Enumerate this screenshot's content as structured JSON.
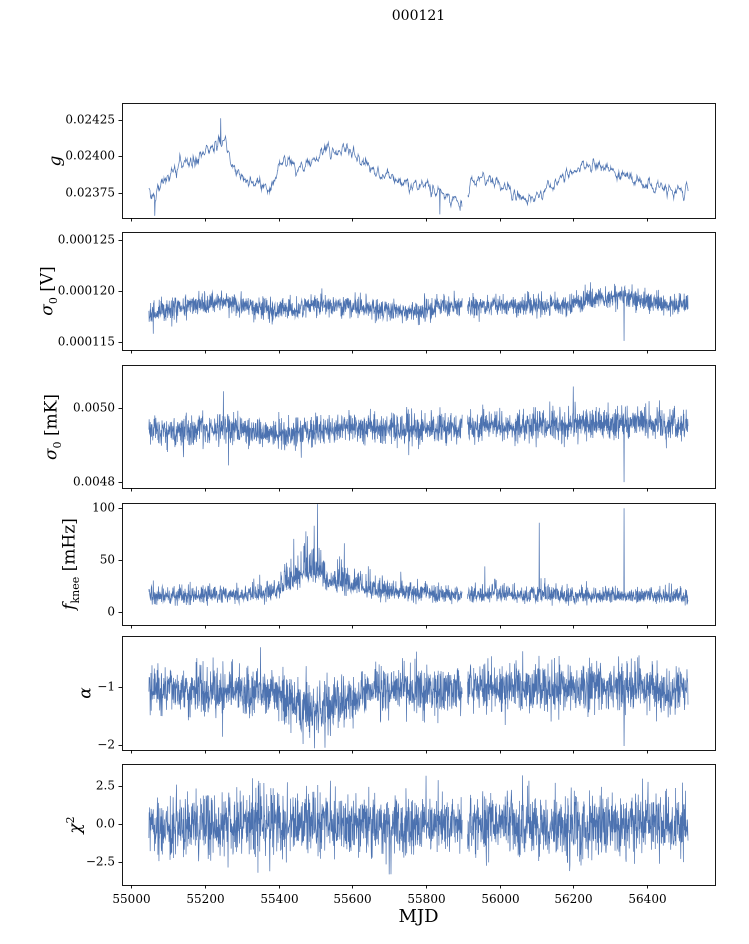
{
  "figure": {
    "title": "000121"
  },
  "chart_data": {
    "type": "line",
    "line_color": "#4c72b0",
    "x_axis": {
      "label": "MJD",
      "xlim": [
        54975,
        56585
      ],
      "ticks": {
        "values": [
          55000,
          55200,
          55400,
          55600,
          55800,
          56000,
          56200,
          56400
        ],
        "labels": [
          "55000",
          "55200",
          "55400",
          "55600",
          "55800",
          "56000",
          "56200",
          "56400"
        ]
      }
    },
    "panels": [
      {
        "name": "g",
        "ylabel": {
          "main": "g",
          "sub": "",
          "sup": "",
          "unit": ""
        },
        "ylim": [
          0.023575,
          0.024365
        ],
        "yticks": {
          "values": [
            0.02375,
            0.024,
            0.02425
          ],
          "labels": [
            "0.02375",
            "0.02400",
            "0.02425"
          ]
        },
        "x_range": [
          55048,
          56512
        ],
        "step": 1.0,
        "envelope": {
          "x": [
            55048,
            55070,
            55100,
            55140,
            55180,
            55210,
            55235,
            55252,
            55268,
            55290,
            55320,
            55350,
            55380,
            55402,
            55430,
            55460,
            55500,
            55540,
            55575,
            55610,
            55650,
            55690,
            55725,
            55760,
            55800,
            55830,
            55862,
            55892,
            55920,
            55950,
            55980,
            56010,
            56040,
            56070,
            56100,
            56130,
            56160,
            56200,
            56240,
            56270,
            56300,
            56330,
            56360,
            56400,
            56440,
            56470,
            56510
          ],
          "mean": [
            0.02368,
            0.02375,
            0.02386,
            0.02394,
            0.02399,
            0.02404,
            0.02409,
            0.02412,
            0.02396,
            0.02388,
            0.02383,
            0.02381,
            0.02379,
            0.02394,
            0.02397,
            0.02391,
            0.02399,
            0.02403,
            0.02405,
            0.024,
            0.02392,
            0.02386,
            0.02381,
            0.02379,
            0.02383,
            0.02376,
            0.02372,
            0.02368,
            0.0238,
            0.02386,
            0.02384,
            0.02377,
            0.02373,
            0.02371,
            0.02372,
            0.02378,
            0.02384,
            0.0239,
            0.02393,
            0.02395,
            0.02391,
            0.02387,
            0.02384,
            0.02381,
            0.02378,
            0.02375,
            0.02379
          ]
        },
        "noise_sd": 5e-05,
        "smooth": 2,
        "skew": 0,
        "clamp": [
          0.02358,
          0.024355
        ],
        "gaps": [
          [
            55899,
            55913
          ]
        ],
        "spikes": [
          [
            55064,
            0.02359
          ],
          [
            55243,
            0.02426
          ],
          [
            55838,
            0.0236
          ],
          [
            55893,
            0.023625
          ]
        ],
        "seed": 11
      },
      {
        "name": "sigma0_V",
        "ylabel": {
          "main": "σ",
          "sub": "0",
          "sup": "",
          "unit": " [V]"
        },
        "ylim": [
          0.0001142,
          0.0001258
        ],
        "yticks": {
          "values": [
            0.000115,
            0.00012,
            0.000125
          ],
          "labels": [
            "0.000115",
            "0.000120",
            "0.000125"
          ]
        },
        "x_range": [
          55048,
          56512
        ],
        "step": 0.7,
        "envelope": {
          "x": [
            55048,
            55080,
            55130,
            55180,
            55230,
            55258,
            55290,
            55330,
            55368,
            55386,
            55420,
            55470,
            55520,
            55570,
            55620,
            55680,
            55730,
            55780,
            55830,
            55880,
            55930,
            55980,
            56030,
            56080,
            56130,
            56180,
            56230,
            56280,
            56320,
            56350,
            56400,
            56450,
            56510
          ],
          "mean": [
            0.0001177,
            0.0001181,
            0.0001184,
            0.0001186,
            0.0001188,
            0.0001191,
            0.0001186,
            0.0001184,
            0.0001183,
            0.0001178,
            0.0001181,
            0.0001184,
            0.0001186,
            0.0001185,
            0.0001184,
            0.0001182,
            0.000118,
            0.0001181,
            0.0001183,
            0.0001184,
            0.0001185,
            0.0001186,
            0.0001185,
            0.0001185,
            0.0001186,
            0.0001187,
            0.000119,
            0.0001193,
            0.0001196,
            0.0001193,
            0.0001189,
            0.0001187,
            0.0001186
          ]
        },
        "noise_sd": 5.5e-07,
        "smooth": 0,
        "skew": 0,
        "clamp": [
          0.0001144,
          0.0001256
        ],
        "gaps": [
          [
            55899,
            55913
          ]
        ],
        "spikes": [
          [
            55060,
            0.0001158
          ],
          [
            56338,
            0.0001151
          ]
        ],
        "seed": 22
      },
      {
        "name": "sigma0_mK",
        "ylabel": {
          "main": "σ",
          "sub": "0",
          "sup": "",
          "unit": " [mK]"
        },
        "ylim": [
          0.004784,
          0.005116
        ],
        "yticks": {
          "values": [
            0.0048,
            0.005
          ],
          "labels": [
            "0.0048",
            "0.0050"
          ]
        },
        "x_range": [
          55048,
          56512
        ],
        "step": 0.7,
        "envelope": {
          "x": [
            55048,
            55100,
            55150,
            55200,
            55250,
            55300,
            55350,
            55400,
            55440,
            55480,
            55520,
            55560,
            55600,
            55650,
            55700,
            55750,
            55800,
            55850,
            55900,
            55950,
            56000,
            56050,
            56100,
            56150,
            56200,
            56250,
            56300,
            56350,
            56400,
            56450,
            56510
          ],
          "mean": [
            0.004934,
            0.004938,
            0.004941,
            0.004943,
            0.004945,
            0.00494,
            0.004936,
            0.004932,
            0.00493,
            0.004936,
            0.004942,
            0.004946,
            0.00495,
            0.004947,
            0.004944,
            0.004942,
            0.004941,
            0.004944,
            0.004947,
            0.00495,
            0.004953,
            0.00495,
            0.004951,
            0.004955,
            0.004958,
            0.004955,
            0.004956,
            0.00496,
            0.004963,
            0.00496,
            0.004958
          ]
        },
        "noise_sd": 2.15e-05,
        "smooth": 0,
        "skew": 0,
        "clamp": [
          0.004786,
          0.005112
        ],
        "gaps": [
          [
            55899,
            55913
          ]
        ],
        "spikes": [
          [
            55250,
            0.005045
          ],
          [
            55264,
            0.004845
          ],
          [
            56200,
            0.005058
          ],
          [
            56338,
            0.0048
          ]
        ],
        "seed": 33
      },
      {
        "name": "f_knee",
        "ylabel": {
          "main": "f",
          "sub": "knee",
          "sup": "",
          "unit": " [mHz]"
        },
        "ylim": [
          -12.5,
          105
        ],
        "yticks": {
          "values": [
            0,
            50,
            100
          ],
          "labels": [
            "0",
            "50",
            "100"
          ]
        },
        "x_range": [
          55048,
          56512
        ],
        "step": 0.7,
        "envelope": {
          "x": [
            55048,
            55150,
            55250,
            55330,
            55390,
            55430,
            55460,
            55490,
            55520,
            55550,
            55585,
            55615,
            55645,
            55700,
            55760,
            55820,
            55880,
            55940,
            56000,
            56060,
            56120,
            56200,
            56300,
            56400,
            56510
          ],
          "mean": [
            14,
            14,
            15,
            16,
            18,
            26,
            33,
            36,
            32,
            26,
            22,
            24,
            20,
            18,
            17,
            16,
            15,
            15,
            16,
            15,
            15,
            14,
            14,
            14,
            14
          ]
        },
        "noise_sd": 3.4,
        "smooth": 0,
        "skew": 0.7,
        "clamp": [
          6,
          104
        ],
        "gaps": [
          [
            55899,
            55913
          ]
        ],
        "spikes": [
          [
            55960,
            44
          ],
          [
            56108,
            86
          ],
          [
            56338,
            100
          ]
        ],
        "seed": 44
      },
      {
        "name": "alpha",
        "ylabel": {
          "main": "α",
          "sub": "",
          "sup": "",
          "unit": ""
        },
        "ylim": [
          -2.09,
          -0.12
        ],
        "yticks": {
          "values": [
            -2,
            -1
          ],
          "labels": [
            "−2",
            "−1"
          ]
        },
        "x_range": [
          55048,
          56512
        ],
        "step": 0.7,
        "envelope": {
          "x": [
            55048,
            55150,
            55250,
            55320,
            55360,
            55400,
            55440,
            55480,
            55520,
            55560,
            55600,
            55640,
            55700,
            55780,
            55860,
            55940,
            56020,
            56100,
            56180,
            56260,
            56340,
            56420,
            56510
          ],
          "mean": [
            -1.05,
            -1.04,
            -1.08,
            -1.12,
            -1.06,
            -1.1,
            -1.28,
            -1.38,
            -1.4,
            -1.32,
            -1.18,
            -1.06,
            -1.02,
            -1.04,
            -1.06,
            -1.04,
            -1.02,
            -1.05,
            -1.04,
            -1.03,
            -1.05,
            -1.04,
            -1.05
          ]
        },
        "noise_sd": 0.21,
        "noise_env": {
          "x": [
            55048,
            55400,
            55470,
            55560,
            55620,
            56510
          ],
          "sd": [
            0.21,
            0.22,
            0.27,
            0.25,
            0.21,
            0.21
          ]
        },
        "smooth": 0,
        "skew": 0,
        "clamp": [
          -2.06,
          -0.16
        ],
        "gaps": [
          [
            55899,
            55913
          ]
        ],
        "spikes": [
          [
            55248,
            -1.86
          ],
          [
            56338,
            -2.02
          ]
        ],
        "seed": 55
      },
      {
        "name": "chi2",
        "ylabel": {
          "main": "χ",
          "sub": "",
          "sup": "2",
          "unit": ""
        },
        "ylim": [
          -4.0,
          3.95
        ],
        "yticks": {
          "values": [
            -2.5,
            0,
            2.5
          ],
          "labels": [
            "−2.5",
            "0.0",
            "2.5"
          ]
        },
        "x_range": [
          55048,
          56512
        ],
        "step": 0.7,
        "envelope": {
          "x": [
            55048,
            56510
          ],
          "mean": [
            0.0,
            0.0
          ]
        },
        "noise_sd": 1.05,
        "smooth": 0,
        "skew": 0,
        "clamp": [
          -3.3,
          3.2
        ],
        "gaps": [
          [
            55899,
            55913
          ]
        ],
        "spikes": [],
        "seed": 66
      }
    ]
  }
}
